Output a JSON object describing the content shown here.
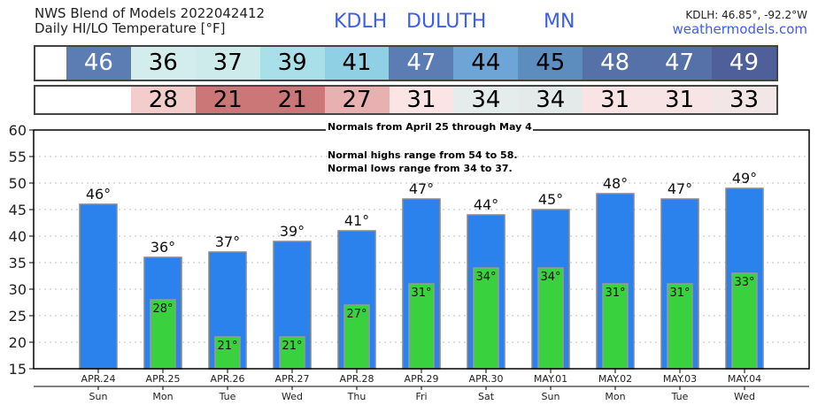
{
  "header": {
    "title_line1": "NWS Blend of Models 2022042412",
    "title_line2": "Daily HI/LO Temperature [°F]",
    "station": "KDLH",
    "city": "DULUTH",
    "state": "MN",
    "coords": "KDLH: 46.85°, -92.2°W",
    "site": "weathermodels.com"
  },
  "hi_row": [
    {
      "v": "46",
      "bg": "#5b7db4",
      "fg": "#fff"
    },
    {
      "v": "36",
      "bg": "#d3ecec",
      "fg": "#000"
    },
    {
      "v": "37",
      "bg": "#cdebea",
      "fg": "#000"
    },
    {
      "v": "39",
      "bg": "#a8dfe8",
      "fg": "#000"
    },
    {
      "v": "41",
      "bg": "#8fd0e4",
      "fg": "#000"
    },
    {
      "v": "47",
      "bg": "#5b7db4",
      "fg": "#fff"
    },
    {
      "v": "44",
      "bg": "#6ca5d6",
      "fg": "#000"
    },
    {
      "v": "45",
      "bg": "#5d8cbf",
      "fg": "#000"
    },
    {
      "v": "48",
      "bg": "#5670a8",
      "fg": "#fff"
    },
    {
      "v": "47",
      "bg": "#5670a8",
      "fg": "#fff"
    },
    {
      "v": "49",
      "bg": "#4e5f9a",
      "fg": "#fff"
    }
  ],
  "lo_row": [
    {
      "v": "28",
      "bg": "#f3cccc"
    },
    {
      "v": "21",
      "bg": "#cc7777"
    },
    {
      "v": "21",
      "bg": "#cc7777"
    },
    {
      "v": "27",
      "bg": "#e8b0b0"
    },
    {
      "v": "31",
      "bg": "#fbe4e4"
    },
    {
      "v": "34",
      "bg": "#e4ecec"
    },
    {
      "v": "34",
      "bg": "#e4e9e9"
    },
    {
      "v": "31",
      "bg": "#f8e4e4"
    },
    {
      "v": "31",
      "bg": "#f8e4e4"
    },
    {
      "v": "33",
      "bg": "#f2e6e6"
    }
  ],
  "normals": {
    "line1": "Normals from April 25 through May 4",
    "line2": "Normal highs range from 54 to 58.",
    "line3": "Normal lows range from 34 to 37."
  },
  "chart_data": {
    "type": "bar",
    "ylim": [
      15,
      60
    ],
    "yticks": [
      15,
      20,
      25,
      30,
      35,
      40,
      45,
      50,
      55,
      60
    ],
    "categories": [
      "APR.24",
      "APR.25",
      "APR.26",
      "APR.27",
      "APR.28",
      "APR.29",
      "APR.30",
      "MAY.01",
      "MAY.02",
      "MAY.03",
      "MAY.04"
    ],
    "days": [
      "Sun",
      "Mon",
      "Tue",
      "Wed",
      "Thu",
      "Fri",
      "Sat",
      "Sun",
      "Mon",
      "Tue",
      "Wed"
    ],
    "series": [
      {
        "name": "High",
        "color": "#2b82ec",
        "values": [
          46,
          36,
          37,
          39,
          41,
          47,
          44,
          45,
          48,
          47,
          49
        ],
        "labels": [
          "46°",
          "36°",
          "37°",
          "39°",
          "41°",
          "47°",
          "44°",
          "45°",
          "48°",
          "47°",
          "49°"
        ]
      },
      {
        "name": "Low",
        "color": "#3ad13e",
        "values": [
          null,
          28,
          21,
          21,
          27,
          31,
          34,
          34,
          31,
          31,
          33
        ],
        "labels": [
          null,
          "28°",
          "21°",
          "21°",
          "27°",
          "31°",
          "34°",
          "34°",
          "31°",
          "31°",
          "33°"
        ]
      }
    ]
  }
}
